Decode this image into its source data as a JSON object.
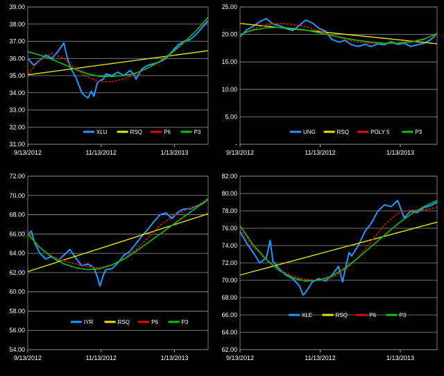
{
  "chart_data": [
    {
      "type": "line",
      "ylim": [
        31,
        39
      ],
      "yticks": [
        "31.00",
        "32.00",
        "33.00",
        "34.00",
        "35.00",
        "36.00",
        "37.00",
        "38.00",
        "39.00"
      ],
      "xticks": [
        "9/13/2012",
        "11/13/2012",
        "1/13/2013"
      ],
      "x_range": [
        0,
        150
      ],
      "xtick_pos": [
        0,
        61,
        122
      ],
      "grid": true,
      "legend": [
        "XLU",
        "RSQ",
        "P6",
        "P3"
      ],
      "legend_position": "bottom-right",
      "colors": {
        "data": "#1e9bff",
        "rsq": "#e6e600",
        "p6": "#e01010",
        "p3": "#10c010"
      },
      "series": [
        {
          "name": "XLU",
          "x": [
            0,
            5,
            10,
            15,
            20,
            25,
            30,
            33,
            36,
            40,
            45,
            48,
            50,
            53,
            55,
            58,
            60,
            63,
            65,
            70,
            75,
            80,
            85,
            88,
            90,
            95,
            100,
            105,
            110,
            115,
            120,
            125,
            130,
            135,
            140,
            145,
            150
          ],
          "y": [
            36.0,
            35.6,
            35.9,
            36.2,
            36.0,
            36.4,
            36.9,
            36.0,
            35.4,
            34.9,
            34.0,
            33.8,
            33.7,
            34.1,
            33.8,
            34.6,
            34.7,
            34.8,
            35.1,
            35.0,
            35.2,
            35.0,
            35.3,
            35.1,
            34.8,
            35.4,
            35.6,
            35.7,
            35.8,
            36.0,
            36.4,
            36.8,
            37.0,
            37.1,
            37.4,
            37.8,
            38.2
          ]
        },
        {
          "name": "RSQ",
          "x": [
            0,
            150
          ],
          "y": [
            35.05,
            36.45
          ]
        },
        {
          "name": "P6",
          "x": [
            0,
            10,
            20,
            30,
            40,
            50,
            60,
            70,
            80,
            90,
            100,
            110,
            120,
            130,
            140,
            150
          ],
          "y": [
            35.1,
            35.9,
            36.3,
            36.0,
            35.4,
            34.9,
            34.65,
            34.65,
            34.8,
            35.1,
            35.45,
            35.8,
            36.3,
            36.9,
            37.6,
            38.4
          ]
        },
        {
          "name": "P3",
          "x": [
            0,
            10,
            20,
            30,
            40,
            50,
            60,
            70,
            80,
            90,
            100,
            110,
            120,
            130,
            140,
            150
          ],
          "y": [
            36.4,
            36.2,
            35.95,
            35.65,
            35.35,
            35.1,
            34.95,
            34.95,
            35.0,
            35.15,
            35.45,
            35.85,
            36.35,
            36.95,
            37.6,
            38.4
          ]
        }
      ]
    },
    {
      "type": "line",
      "ylim": [
        0,
        25
      ],
      "yticks": [
        "-",
        "5.00",
        "10.00",
        "15.00",
        "20.00",
        "25.00"
      ],
      "xticks": [
        "9/13/2012",
        "11/13/2012",
        "1/13/2013"
      ],
      "x_range": [
        0,
        150
      ],
      "xtick_pos": [
        0,
        61,
        122
      ],
      "grid": true,
      "legend": [
        "UNG",
        "RSQ",
        "POLY 5",
        "P3"
      ],
      "legend_position": "bottom-right",
      "colors": {
        "data": "#1e9bff",
        "rsq": "#e6e600",
        "p6": "#e01010",
        "p3": "#10c010"
      },
      "series": [
        {
          "name": "UNG",
          "x": [
            0,
            5,
            10,
            15,
            20,
            25,
            30,
            35,
            40,
            45,
            50,
            55,
            60,
            65,
            70,
            75,
            80,
            85,
            90,
            95,
            100,
            105,
            110,
            115,
            120,
            125,
            130,
            135,
            140,
            145,
            150
          ],
          "y": [
            19.6,
            20.8,
            21.5,
            22.3,
            22.9,
            21.9,
            21.6,
            21.1,
            20.7,
            21.6,
            22.6,
            22.1,
            21.1,
            20.6,
            19.1,
            18.6,
            18.9,
            18.1,
            17.8,
            18.2,
            17.8,
            18.3,
            18.1,
            18.7,
            18.2,
            18.4,
            17.8,
            18.1,
            18.4,
            19.0,
            20.1
          ]
        },
        {
          "name": "RSQ",
          "x": [
            0,
            150
          ],
          "y": [
            22.0,
            18.3
          ]
        },
        {
          "name": "POLY 5",
          "x": [
            0,
            10,
            20,
            30,
            40,
            50,
            60,
            70,
            80,
            90,
            100,
            110,
            120,
            130,
            140,
            150
          ],
          "y": [
            19.9,
            21.0,
            21.8,
            22.0,
            21.8,
            21.4,
            20.7,
            19.9,
            19.1,
            18.6,
            18.4,
            18.4,
            18.5,
            18.7,
            19.2,
            19.9
          ]
        },
        {
          "name": "P3",
          "x": [
            0,
            10,
            20,
            30,
            40,
            50,
            60,
            70,
            80,
            90,
            100,
            110,
            120,
            130,
            140,
            150
          ],
          "y": [
            20.0,
            20.8,
            21.2,
            21.3,
            21.1,
            20.8,
            20.3,
            19.8,
            19.3,
            18.9,
            18.6,
            18.4,
            18.4,
            18.6,
            19.1,
            20.2
          ]
        }
      ]
    },
    {
      "type": "line",
      "ylim": [
        54,
        72
      ],
      "yticks": [
        "54.00",
        "56.00",
        "58.00",
        "60.00",
        "62.00",
        "64.00",
        "66.00",
        "68.00",
        "70.00",
        "72.00"
      ],
      "xticks": [
        "9/13/2012",
        "11/13/2012",
        "1/13/2013"
      ],
      "x_range": [
        0,
        150
      ],
      "xtick_pos": [
        0,
        61,
        122
      ],
      "grid": true,
      "legend": [
        "IYR",
        "RSQ",
        "P6",
        "P3"
      ],
      "legend_position": "bottom-right",
      "colors": {
        "data": "#1e9bff",
        "rsq": "#e6e600",
        "p6": "#e01010",
        "p3": "#10c010"
      },
      "series": [
        {
          "name": "IYR",
          "x": [
            0,
            3,
            6,
            10,
            15,
            20,
            25,
            30,
            35,
            40,
            45,
            50,
            55,
            58,
            60,
            63,
            65,
            70,
            75,
            80,
            85,
            90,
            95,
            100,
            105,
            110,
            115,
            120,
            125,
            130,
            135,
            140,
            145,
            150
          ],
          "y": [
            66.0,
            66.3,
            65.0,
            64.0,
            63.4,
            63.7,
            63.2,
            63.8,
            64.4,
            63.5,
            62.7,
            62.9,
            62.5,
            61.5,
            60.6,
            61.8,
            62.3,
            62.4,
            63.0,
            63.8,
            64.2,
            65.0,
            65.8,
            66.5,
            67.3,
            68.0,
            68.2,
            67.6,
            68.3,
            68.6,
            68.6,
            68.9,
            69.1,
            69.6
          ]
        },
        {
          "name": "RSQ",
          "x": [
            0,
            150
          ],
          "y": [
            62.1,
            68.1
          ]
        },
        {
          "name": "P6",
          "x": [
            0,
            10,
            20,
            30,
            40,
            50,
            60,
            70,
            80,
            90,
            100,
            110,
            120,
            130,
            140,
            150
          ],
          "y": [
            66.2,
            64.6,
            63.7,
            63.2,
            62.9,
            62.6,
            62.5,
            62.8,
            63.4,
            64.4,
            65.6,
            66.9,
            67.8,
            68.4,
            68.9,
            69.7
          ]
        },
        {
          "name": "P3",
          "x": [
            0,
            10,
            20,
            30,
            40,
            50,
            60,
            70,
            80,
            90,
            100,
            110,
            120,
            130,
            140,
            150
          ],
          "y": [
            66.0,
            64.6,
            63.6,
            62.9,
            62.5,
            62.3,
            62.4,
            62.8,
            63.4,
            64.2,
            65.1,
            66.0,
            66.9,
            67.8,
            68.7,
            69.6
          ]
        }
      ]
    },
    {
      "type": "line",
      "ylim": [
        62,
        82
      ],
      "yticks": [
        "62.00",
        "64.00",
        "66.00",
        "68.00",
        "70.00",
        "72.00",
        "74.00",
        "76.00",
        "78.00",
        "80.00",
        "82.00"
      ],
      "xticks": [
        "9/13/2012",
        "11/13/2012",
        "1/13/2013"
      ],
      "x_range": [
        0,
        150
      ],
      "xtick_pos": [
        0,
        61,
        122
      ],
      "grid": true,
      "legend": [
        "XLE",
        "RSQ",
        "P6",
        "P3"
      ],
      "legend_position": "bottom-right",
      "colors": {
        "data": "#1e9bff",
        "rsq": "#e6e600",
        "p6": "#e01010",
        "p3": "#10c010"
      },
      "series": [
        {
          "name": "XLE",
          "x": [
            0,
            5,
            10,
            15,
            20,
            23,
            25,
            30,
            35,
            40,
            45,
            48,
            50,
            55,
            60,
            65,
            70,
            75,
            78,
            80,
            83,
            85,
            90,
            95,
            100,
            105,
            110,
            115,
            120,
            125,
            130,
            135,
            140,
            145,
            150
          ],
          "y": [
            75.6,
            74.3,
            73.2,
            72.0,
            72.6,
            74.6,
            72.2,
            71.3,
            70.6,
            70.2,
            69.4,
            68.3,
            68.6,
            69.8,
            70.2,
            69.9,
            70.6,
            71.6,
            69.8,
            71.2,
            73.2,
            72.8,
            74.0,
            75.6,
            76.6,
            78.0,
            78.7,
            78.5,
            79.2,
            77.2,
            78.0,
            77.8,
            78.4,
            78.6,
            79.0
          ]
        },
        {
          "name": "RSQ",
          "x": [
            0,
            150
          ],
          "y": [
            70.6,
            76.7
          ]
        },
        {
          "name": "P6",
          "x": [
            0,
            10,
            20,
            30,
            40,
            50,
            60,
            70,
            80,
            90,
            100,
            110,
            120,
            130,
            140,
            150
          ],
          "y": [
            75.9,
            73.9,
            72.3,
            71.2,
            70.5,
            70.1,
            70.0,
            70.3,
            71.2,
            72.6,
            74.5,
            76.4,
            77.7,
            78.1,
            78.1,
            78.4
          ]
        },
        {
          "name": "P3",
          "x": [
            0,
            10,
            20,
            30,
            40,
            50,
            60,
            70,
            80,
            90,
            100,
            110,
            120,
            130,
            140,
            150
          ],
          "y": [
            76.3,
            74.1,
            72.4,
            71.1,
            70.3,
            69.9,
            70.0,
            70.5,
            71.4,
            72.6,
            73.9,
            75.2,
            76.5,
            77.6,
            78.5,
            79.2
          ]
        }
      ]
    }
  ]
}
